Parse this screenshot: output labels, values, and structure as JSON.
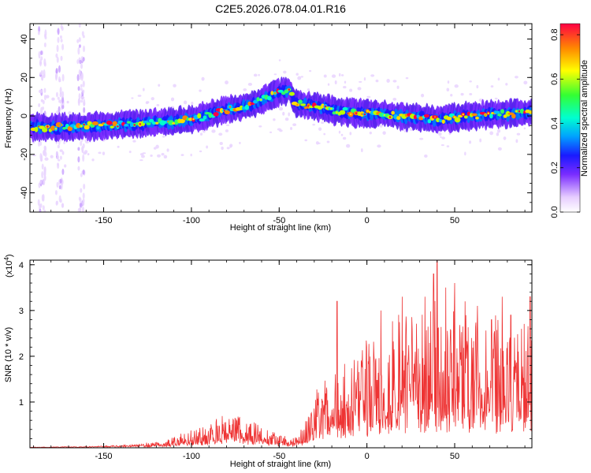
{
  "chart_data": [
    {
      "type": "heatmap",
      "title": "C2E5.2026.078.04.01.R16",
      "xlabel": "Height of straight line (km)",
      "ylabel": "Frequency (Hz)",
      "xlim": [
        -192,
        94
      ],
      "ylim": [
        -50,
        48
      ],
      "xticks": [
        -150,
        -100,
        -50,
        0,
        50
      ],
      "xtick_labels": [
        "-150",
        "-100",
        "-50",
        "0",
        "50"
      ],
      "yticks": [
        -40,
        -20,
        0,
        20,
        40
      ],
      "ytick_labels": [
        "-40",
        "-20",
        "0",
        "20",
        "40"
      ],
      "colorbar": {
        "label": "Normalized spectral amplitude",
        "range": [
          0,
          0.85
        ],
        "ticks": [
          0.0,
          0.2,
          0.4,
          0.6,
          0.8
        ],
        "tick_labels": [
          "0.0",
          "0.2",
          "0.4",
          "0.6",
          "0.8"
        ]
      },
      "ridge": {
        "description_points_x": [
          -192,
          -170,
          -150,
          -130,
          -110,
          -95,
          -85,
          -75,
          -65,
          -58,
          -50,
          -44,
          -42,
          -38,
          -30,
          -20,
          -10,
          0,
          10,
          20,
          30,
          40,
          50,
          60,
          70,
          80,
          94
        ],
        "description_points_y": [
          -6,
          -6,
          -5,
          -4,
          -3,
          -1,
          2,
          4,
          6,
          9,
          12,
          14,
          8,
          6,
          5,
          3,
          2,
          1,
          1,
          0,
          -1,
          -2,
          -1,
          0,
          1,
          1,
          2
        ]
      },
      "interference_columns_x": [
        -185,
        -175,
        -163
      ]
    },
    {
      "type": "line",
      "title": "",
      "xlabel": "Height of straight line (km)",
      "ylabel": "SNR (10 * v/v)",
      "y_multiplier": "(x10",
      "y_multiplier_exp": "4",
      "y_multiplier_close": ")",
      "xlim": [
        -192,
        94
      ],
      "ylim": [
        0,
        4.1
      ],
      "xticks": [
        -150,
        -100,
        -50,
        0,
        50
      ],
      "xtick_labels": [
        "-150",
        "-100",
        "-50",
        "0",
        "50"
      ],
      "yticks": [
        1,
        2,
        3,
        4
      ],
      "ytick_labels": [
        "1",
        "2",
        "3",
        "4"
      ],
      "series": [
        {
          "name": "SNR",
          "color": "#ee3333",
          "envelope_x": [
            -192,
            -160,
            -130,
            -115,
            -105,
            -98,
            -92,
            -85,
            -78,
            -72,
            -66,
            -60,
            -55,
            -50,
            -45,
            -40,
            -36,
            -32,
            -28,
            -24,
            -20,
            -15,
            -10,
            -5,
            0,
            5,
            10,
            15,
            20,
            25,
            30,
            35,
            40,
            45,
            50,
            55,
            60,
            65,
            70,
            75,
            80,
            85,
            90,
            94
          ],
          "envelope_y": [
            0.01,
            0.02,
            0.05,
            0.1,
            0.18,
            0.25,
            0.3,
            0.4,
            0.45,
            0.42,
            0.35,
            0.3,
            0.25,
            0.2,
            0.12,
            0.15,
            0.3,
            0.6,
            0.8,
            0.9,
            1.0,
            1.05,
            1.1,
            1.2,
            1.4,
            1.5,
            1.55,
            1.6,
            1.7,
            1.75,
            1.8,
            1.85,
            1.9,
            1.9,
            1.85,
            1.8,
            1.8,
            1.75,
            1.7,
            1.7,
            1.65,
            1.6,
            1.6,
            1.5
          ],
          "peaks_x": [
            -17,
            8,
            20,
            33,
            38,
            40,
            45,
            50,
            56,
            63,
            71,
            77,
            82,
            88,
            93
          ],
          "peaks_y": [
            3.2,
            3.0,
            3.3,
            3.3,
            3.8,
            4.1,
            3.5,
            3.6,
            3.2,
            3.1,
            2.8,
            3.3,
            2.9,
            2.6,
            3.3
          ]
        }
      ]
    }
  ]
}
